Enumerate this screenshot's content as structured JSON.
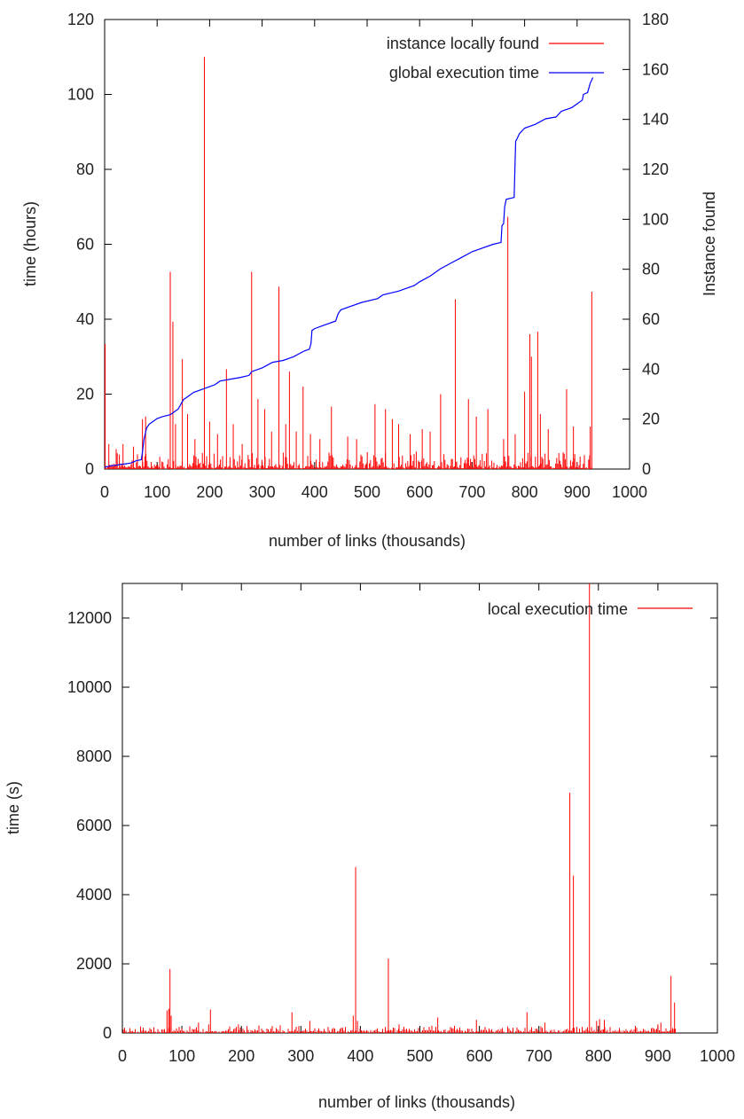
{
  "chart_data": [
    {
      "type": "line",
      "xlabel": "number of links (thousands)",
      "ylabel": "time (hours)",
      "y2label": "Instance found",
      "xlim": [
        0,
        1000
      ],
      "ylim": [
        0,
        120
      ],
      "y2lim": [
        0,
        180
      ],
      "xticks": [
        "0",
        "100",
        "200",
        "300",
        "400",
        "500",
        "600",
        "700",
        "800",
        "900",
        "1000"
      ],
      "yticks": [
        "0",
        "20",
        "40",
        "60",
        "80",
        "100",
        "120"
      ],
      "y2ticks": [
        "0",
        "20",
        "40",
        "60",
        "80",
        "100",
        "120",
        "140",
        "160",
        "180"
      ],
      "grid": false,
      "legend_position": "top-right",
      "series": [
        {
          "name": "instance locally found",
          "axis": "y2",
          "color": "#ff0000",
          "style": "impulses",
          "spikes_x": [
            1,
            8,
            22,
            35,
            55,
            72,
            78,
            125,
            130,
            135,
            148,
            158,
            172,
            190,
            200,
            215,
            232,
            245,
            262,
            280,
            292,
            305,
            318,
            332,
            345,
            352,
            365,
            378,
            392,
            410,
            432,
            463,
            480,
            515,
            535,
            548,
            560,
            582,
            605,
            620,
            640,
            668,
            693,
            708,
            730,
            760,
            768,
            782,
            800,
            810,
            813,
            825,
            830,
            845,
            880,
            893,
            925,
            928
          ],
          "spikes_y": [
            50,
            10,
            8,
            10,
            9,
            20,
            21,
            79,
            59,
            18,
            44,
            22,
            12,
            165,
            19,
            14,
            40,
            18,
            10,
            79,
            28,
            24,
            15,
            73,
            18,
            39,
            15,
            33,
            14,
            12,
            25,
            13,
            12,
            26,
            24,
            20,
            18,
            14,
            16,
            15,
            30,
            68,
            28,
            21,
            24,
            12,
            101,
            14,
            31,
            54,
            45,
            55,
            22,
            16,
            32,
            17,
            17,
            71
          ]
        },
        {
          "name": "global execution time",
          "axis": "y",
          "color": "#0000ff",
          "style": "line",
          "x": [
            0,
            10,
            20,
            30,
            40,
            50,
            60,
            70,
            72,
            75,
            80,
            85,
            90,
            100,
            110,
            125,
            130,
            140,
            150,
            160,
            170,
            180,
            190,
            200,
            210,
            220,
            240,
            260,
            275,
            280,
            300,
            320,
            340,
            360,
            380,
            390,
            393,
            395,
            400,
            420,
            440,
            445,
            450,
            470,
            490,
            520,
            530,
            560,
            590,
            600,
            620,
            640,
            660,
            680,
            700,
            720,
            740,
            755,
            757,
            760,
            762,
            765,
            780,
            783,
            785,
            790,
            800,
            820,
            840,
            860,
            870,
            880,
            890,
            900,
            910,
            912,
            920,
            925,
            930
          ],
          "y": [
            0.5,
            0.8,
            1.0,
            1.2,
            1.4,
            1.6,
            2.2,
            2.5,
            4.5,
            8.0,
            11.0,
            12.0,
            12.5,
            13.5,
            14.0,
            14.5,
            15.0,
            16.0,
            18.5,
            19.5,
            20.5,
            21.0,
            21.5,
            22.0,
            22.5,
            23.5,
            24.0,
            24.5,
            25.0,
            26.0,
            27.0,
            28.5,
            29.0,
            30.0,
            31.5,
            32.0,
            33.5,
            37.0,
            37.5,
            38.5,
            39.5,
            41.5,
            42.5,
            43.5,
            44.5,
            45.5,
            46.5,
            47.5,
            49.0,
            50.0,
            51.5,
            53.5,
            55.0,
            56.5,
            58.0,
            59.0,
            60.0,
            60.5,
            65.0,
            65.5,
            70.0,
            72.0,
            72.5,
            87.5,
            88.0,
            89.5,
            91.0,
            92.0,
            93.5,
            94.0,
            95.5,
            96.0,
            96.5,
            97.5,
            98.5,
            100.0,
            100.5,
            103.0,
            104.5
          ]
        }
      ]
    },
    {
      "type": "line",
      "xlabel": "number of links (thousands)",
      "ylabel": "time (s)",
      "xlim": [
        0,
        1000
      ],
      "ylim": [
        0,
        13000
      ],
      "xticks": [
        "0",
        "100",
        "200",
        "300",
        "400",
        "500",
        "600",
        "700",
        "800",
        "900",
        "1000"
      ],
      "yticks": [
        "0",
        "2000",
        "4000",
        "6000",
        "8000",
        "10000",
        "12000"
      ],
      "grid": false,
      "legend_position": "top-right",
      "series": [
        {
          "name": "local execution time",
          "color": "#ff0000",
          "style": "impulses",
          "spikes_x": [
            75,
            78,
            80,
            82,
            128,
            145,
            148,
            195,
            285,
            315,
            388,
            392,
            395,
            447,
            465,
            530,
            595,
            680,
            710,
            752,
            758,
            785,
            797,
            802,
            810,
            900,
            905,
            922,
            928
          ],
          "spikes_y": [
            650,
            700,
            1850,
            500,
            300,
            250,
            680,
            250,
            600,
            350,
            500,
            4800,
            350,
            2150,
            250,
            450,
            380,
            600,
            300,
            6950,
            4550,
            13000,
            350,
            400,
            380,
            250,
            300,
            1650,
            880
          ]
        }
      ]
    }
  ]
}
